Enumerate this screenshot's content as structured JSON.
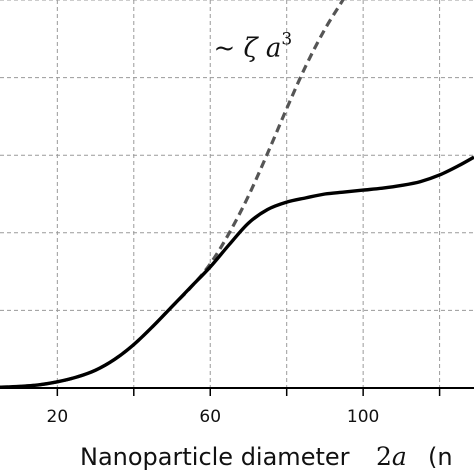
{
  "chart_data": {
    "type": "line",
    "xlabel": "Nanoparticle diameter",
    "xlabel_math": "2a",
    "xlabel_unit": "(n",
    "xlim": [
      5,
      129
    ],
    "ylim": [
      0,
      100
    ],
    "x_ticks": [
      20,
      40,
      60,
      80,
      100,
      120
    ],
    "x_tick_labels": [
      "20",
      "",
      "60",
      "",
      "100",
      ""
    ],
    "grid": true,
    "series": [
      {
        "style": "solid",
        "color": "#000000",
        "x": [
          5,
          10,
          15,
          20,
          25,
          30,
          35,
          40,
          45,
          50,
          55,
          60,
          65,
          70,
          75,
          80,
          85,
          90,
          95,
          100,
          105,
          110,
          115,
          120,
          125,
          129
        ],
        "y": [
          0.2,
          0.4,
          0.8,
          1.6,
          2.8,
          4.6,
          7.4,
          11.2,
          15.9,
          21.0,
          26.1,
          31.2,
          37.0,
          42.5,
          46.0,
          47.9,
          49.0,
          50.0,
          50.5,
          51.0,
          51.5,
          52.2,
          53.2,
          54.9,
          57.3,
          59.5
        ]
      },
      {
        "style": "dashed",
        "color": "#555555",
        "x": [
          5,
          10,
          15,
          20,
          25,
          30,
          35,
          40,
          45,
          50,
          55,
          60,
          65,
          70,
          75,
          80,
          85,
          90,
          95,
          98
        ],
        "y": [
          0.2,
          0.4,
          0.8,
          1.6,
          2.8,
          4.6,
          7.4,
          11.2,
          15.9,
          21.0,
          26.0,
          32.0,
          40.0,
          49.5,
          60.5,
          72.0,
          83.0,
          92.5,
          100.5,
          106.0
        ]
      }
    ],
    "annotation": {
      "text": "~ ζ a³",
      "x": 87,
      "y": 88
    }
  }
}
